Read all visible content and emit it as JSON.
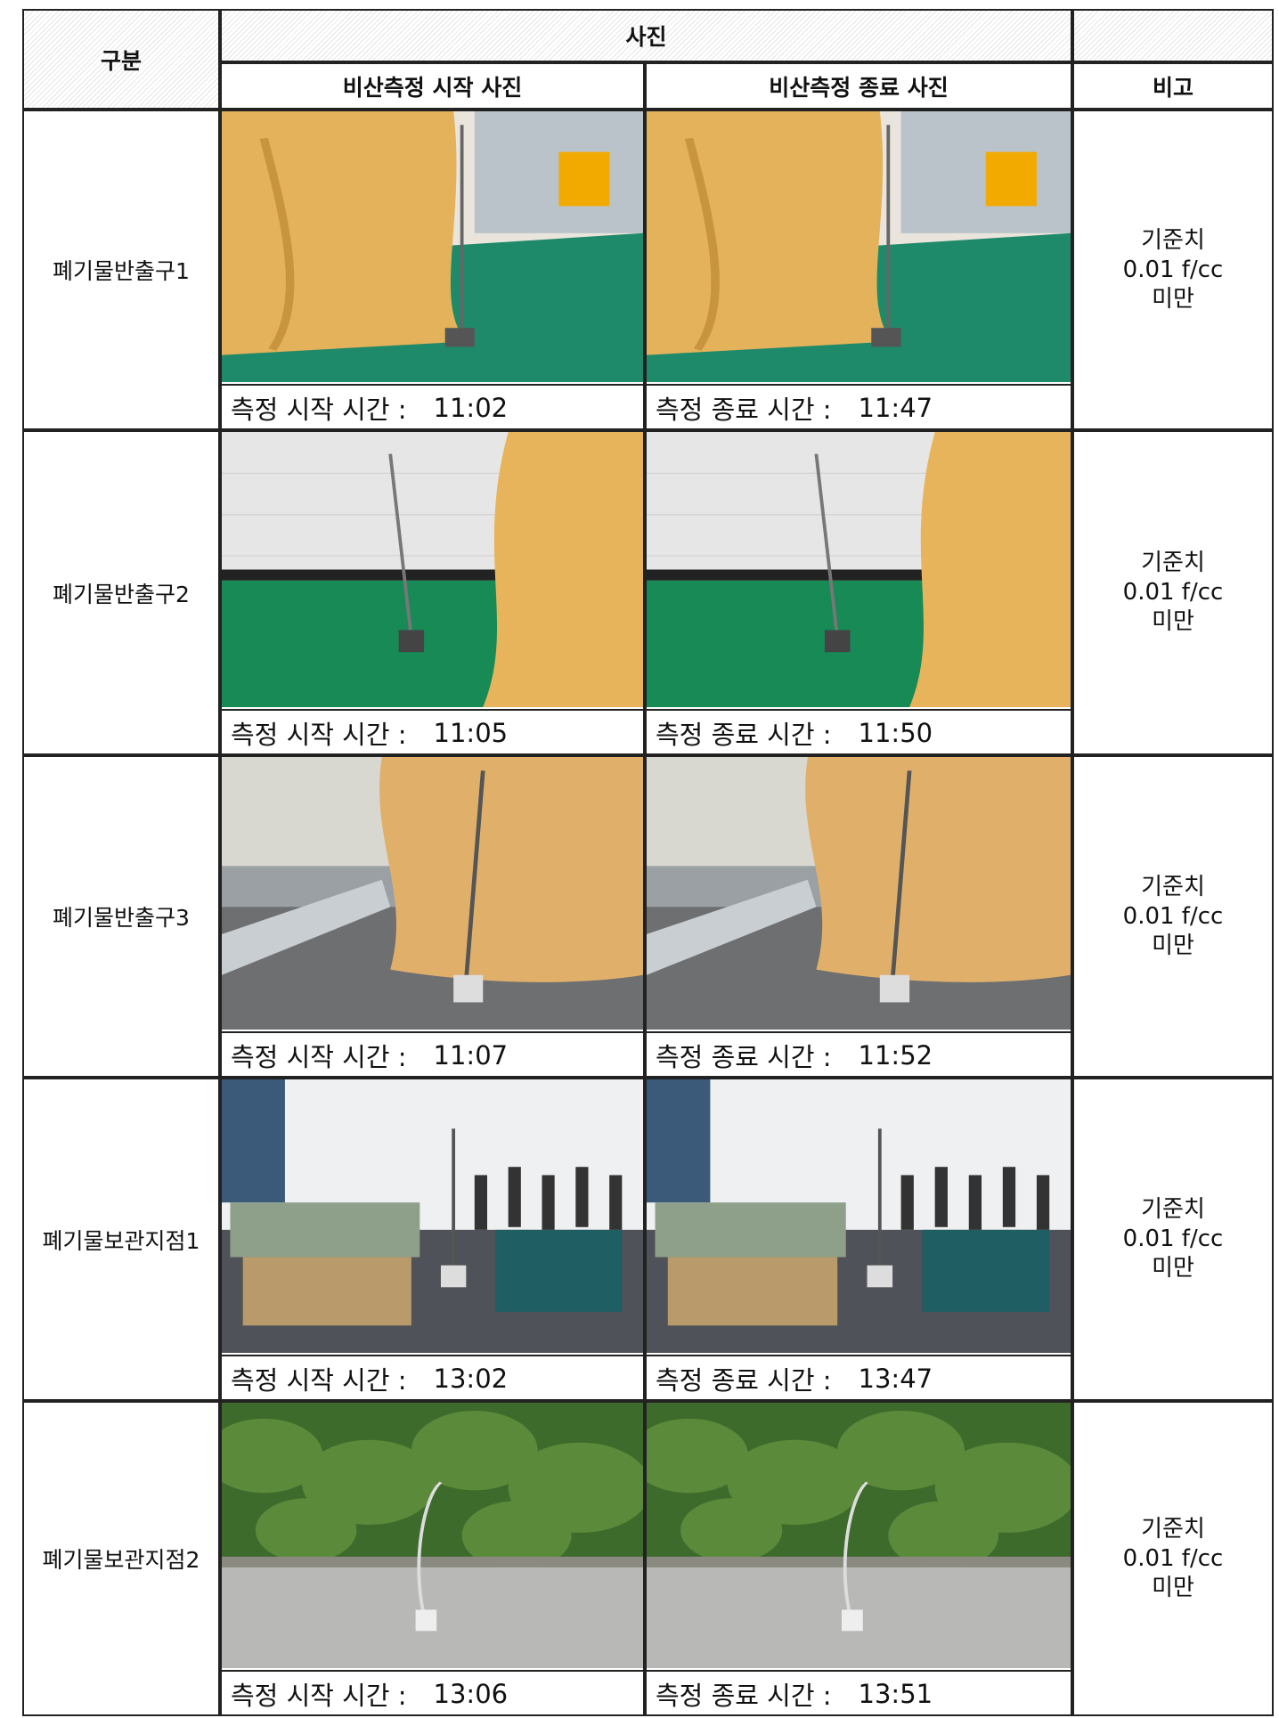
{
  "header": {
    "category": "구분",
    "photo": "사진",
    "start_photo": "비산측정 시작 사진",
    "end_photo": "비산측정 종료 사진",
    "note": "비고"
  },
  "rows": [
    {
      "name": "폐기물반출구1",
      "start_label": "측정 시작 시간 :",
      "start_time": "11:02",
      "end_label": "측정 종료 시간 :",
      "end_time": "11:47",
      "note": [
        "기준치",
        "0.01 f/cc",
        "미만"
      ]
    },
    {
      "name": "폐기물반출구2",
      "start_label": "측정 시작 시간 :",
      "start_time": "11:05",
      "end_label": "측정 종료 시간 :",
      "end_time": "11:50",
      "note": [
        "기준치",
        "0.01 f/cc",
        "미만"
      ]
    },
    {
      "name": "폐기물반출구3",
      "start_label": "측정 시작 시간 :",
      "start_time": "11:07",
      "end_label": "측정 종료 시간 :",
      "end_time": "11:52",
      "note": [
        "기준치",
        "0.01 f/cc",
        "미만"
      ]
    },
    {
      "name": "폐기물보관지점1",
      "start_label": "측정 시작 시간 :",
      "start_time": "13:02",
      "end_label": "측정 종료 시간 :",
      "end_time": "13:47",
      "note": [
        "기준치",
        "0.01 f/cc",
        "미만"
      ]
    },
    {
      "name": "폐기물보관지점2",
      "start_label": "측정 시작 시간 :",
      "start_time": "13:06",
      "end_label": "측정 종료 시간 :",
      "end_time": "13:51",
      "note": [
        "기준치",
        "0.01 f/cc",
        "미만"
      ]
    }
  ]
}
